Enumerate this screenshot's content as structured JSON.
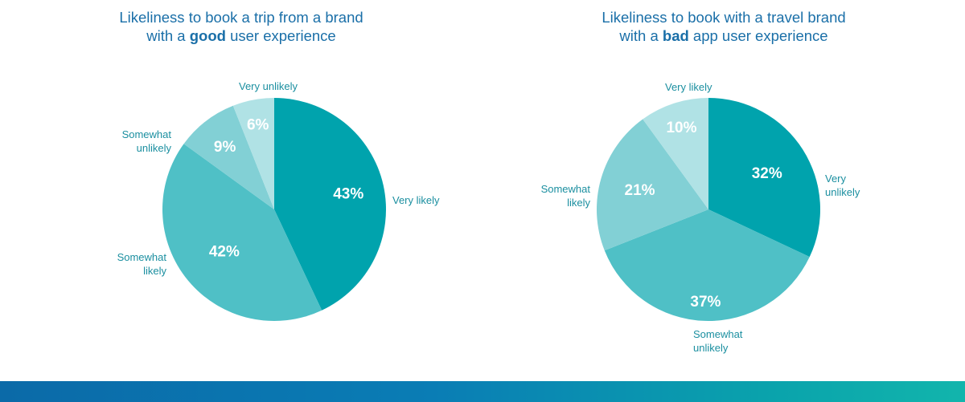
{
  "chart_data": [
    {
      "type": "pie",
      "title_lines": [
        {
          "pre": "Likeliness to book a trip from a brand",
          "bold": "",
          "post": ""
        },
        {
          "pre": "with a ",
          "bold": "good",
          "post": " user experience"
        }
      ],
      "series": [
        {
          "name": "Very likely",
          "value": 43,
          "label": "43%",
          "color": "#00a3ad"
        },
        {
          "name": "Somewhat likely",
          "value": 42,
          "label": "42%",
          "color": "#4fc0c6"
        },
        {
          "name": "Somewhat unlikely",
          "value": 9,
          "label": "9%",
          "color": "#82d0d5"
        },
        {
          "name": "Very unlikely",
          "value": 6,
          "label": "6%",
          "color": "#b0e2e5"
        }
      ]
    },
    {
      "type": "pie",
      "title_lines": [
        {
          "pre": "Likeliness to book with a travel brand",
          "bold": "",
          "post": ""
        },
        {
          "pre": "with a ",
          "bold": "bad",
          "post": " app user experience"
        }
      ],
      "series": [
        {
          "name": "Very unlikely",
          "value": 32,
          "label": "32%",
          "color": "#00a3ad"
        },
        {
          "name": "Somewhat unlikely",
          "value": 37,
          "label": "37%",
          "color": "#4fc0c6"
        },
        {
          "name": "Somewhat likely",
          "value": 21,
          "label": "21%",
          "color": "#82d0d5"
        },
        {
          "name": "Very likely",
          "value": 10,
          "label": "10%",
          "color": "#b0e2e5"
        }
      ]
    }
  ]
}
